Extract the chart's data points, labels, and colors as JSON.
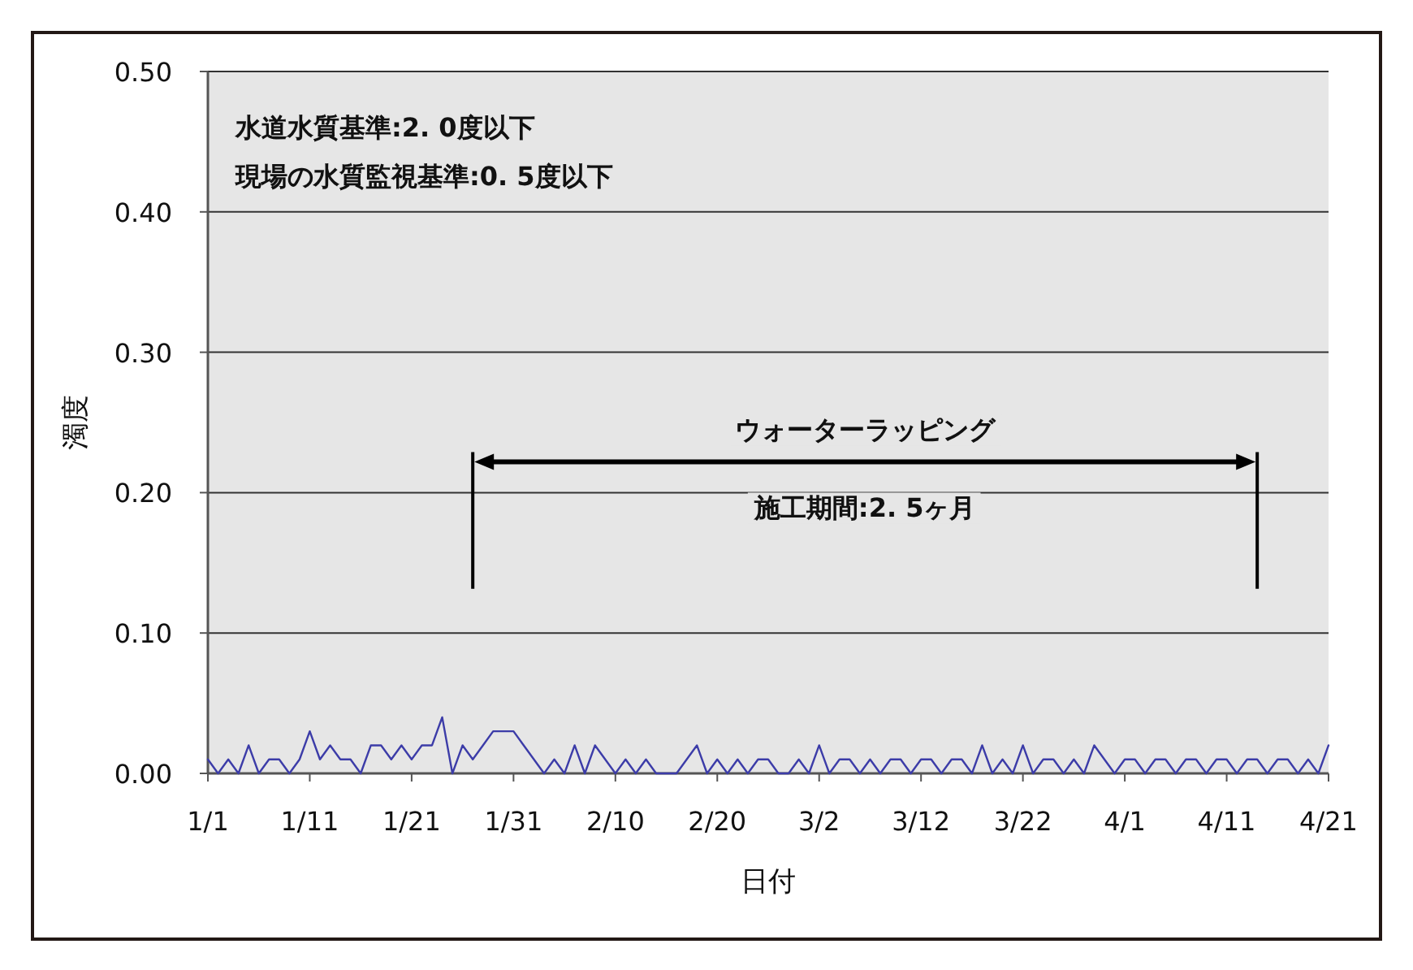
{
  "chart_data": {
    "type": "line",
    "xlabel": "日付",
    "ylabel": "濁度",
    "annotations": [
      "水道水質基準:2. 0度以下",
      "現場の水質監視基準:0. 5度以下",
      "ウォーターラッピング",
      "施工期間:2. 5ヶ月"
    ],
    "color": "#3c3ca8",
    "x": [
      "--01-01",
      "--01-02",
      "--01-03",
      "--01-04",
      "--01-05",
      "--01-06",
      "--01-07",
      "--01-08",
      "--01-09",
      "--01-10",
      "--01-11",
      "--01-12",
      "--01-13",
      "--01-14",
      "--01-15",
      "--01-16",
      "--01-17",
      "--01-18",
      "--01-19",
      "--01-20",
      "--01-21",
      "--01-22",
      "--01-23",
      "--01-24",
      "--01-25",
      "--01-26",
      "--01-27",
      "--01-28",
      "--01-29",
      "--01-30",
      "--01-31",
      "--02-01",
      "--02-02",
      "--02-03",
      "--02-04",
      "--02-05",
      "--02-06",
      "--02-07",
      "--02-08",
      "--02-09",
      "--02-10",
      "--02-11",
      "--02-12",
      "--02-13",
      "--02-14",
      "--02-15",
      "--02-16",
      "--02-17",
      "--02-18",
      "--02-19",
      "--02-20",
      "--02-21",
      "--02-22",
      "--02-23",
      "--02-24",
      "--02-25",
      "--02-26",
      "--02-27",
      "--02-28",
      "--03-01",
      "--03-02",
      "--03-03",
      "--03-04",
      "--03-05",
      "--03-06",
      "--03-07",
      "--03-08",
      "--03-09",
      "--03-10",
      "--03-11",
      "--03-12",
      "--03-13",
      "--03-14",
      "--03-15",
      "--03-16",
      "--03-17",
      "--03-18",
      "--03-19",
      "--03-20",
      "--03-21",
      "--03-22",
      "--03-23",
      "--03-24",
      "--03-25",
      "--03-26",
      "--03-27",
      "--03-28",
      "--03-29",
      "--03-30",
      "--03-31",
      "--04-01",
      "--04-02",
      "--04-03",
      "--04-04",
      "--04-05",
      "--04-06",
      "--04-07",
      "--04-08",
      "--04-09",
      "--04-10",
      "--04-11",
      "--04-12",
      "--04-13",
      "--04-14",
      "--04-15",
      "--04-16",
      "--04-17",
      "--04-18",
      "--04-19",
      "--04-20",
      "--04-21"
    ],
    "values": [
      0.01,
      0,
      0.01,
      0,
      0.02,
      0,
      0.01,
      0.01,
      0,
      0.01,
      0.03,
      0.01,
      0.02,
      0.01,
      0.01,
      0,
      0.02,
      0.02,
      0.01,
      0.02,
      0.01,
      0.02,
      0.02,
      0.04,
      0,
      0.02,
      0.01,
      0.02,
      0.03,
      0.03,
      0.03,
      0.02,
      0.01,
      0,
      0.01,
      0,
      0.02,
      0,
      0.02,
      0.01,
      0,
      0.01,
      0,
      0.01,
      0,
      0,
      0,
      0.01,
      0.02,
      0,
      0.01,
      0,
      0.01,
      0,
      0.01,
      0.01,
      0,
      0,
      0.01,
      0,
      0.02,
      0,
      0.01,
      0.01,
      0,
      0.01,
      0,
      0.01,
      0.01,
      0,
      0.01,
      0.01,
      0,
      0.01,
      0.01,
      0,
      0.02,
      0,
      0.01,
      0,
      0.02,
      0,
      0.01,
      0.01,
      0,
      0.01,
      0,
      0.02,
      0.01,
      0,
      0.01,
      0.01,
      0,
      0.01,
      0.01,
      0,
      0.01,
      0.01,
      0,
      0.01,
      0.01,
      0,
      0.01,
      0.01,
      0,
      0.01,
      0.01,
      0,
      0.01,
      0,
      0.02
    ],
    "xlim": [
      "--01-01",
      "--04-21"
    ],
    "xticks": [
      {
        "value": "--01-01",
        "label": "1/1"
      },
      {
        "value": "--01-11",
        "label": "1/11"
      },
      {
        "value": "--01-21",
        "label": "1/21"
      },
      {
        "value": "--01-31",
        "label": "1/31"
      },
      {
        "value": "--02-10",
        "label": "2/10"
      },
      {
        "value": "--02-20",
        "label": "2/20"
      },
      {
        "value": "--03-02",
        "label": "3/2"
      },
      {
        "value": "--03-12",
        "label": "3/12"
      },
      {
        "value": "--03-22",
        "label": "3/22"
      },
      {
        "value": "--04-01",
        "label": "4/1"
      },
      {
        "value": "--04-11",
        "label": "4/11"
      },
      {
        "value": "--04-21",
        "label": "4/21"
      }
    ],
    "ylim": [
      0,
      0.5
    ],
    "yticks": [
      {
        "value": 0,
        "label": "0.00"
      },
      {
        "value": 0.1,
        "label": "0.10"
      },
      {
        "value": 0.2,
        "label": "0.20"
      },
      {
        "value": 0.3,
        "label": "0.30"
      },
      {
        "value": 0.4,
        "label": "0.40"
      },
      {
        "value": 0.5,
        "label": "0.50"
      }
    ],
    "ref_lines": [
      {
        "axis": "x",
        "value": "--01-27",
        "color": "#000000"
      },
      {
        "axis": "x",
        "value": "--04-14",
        "color": "#000000"
      }
    ],
    "grid": "y",
    "marker": "none",
    "line_style": "solid"
  }
}
